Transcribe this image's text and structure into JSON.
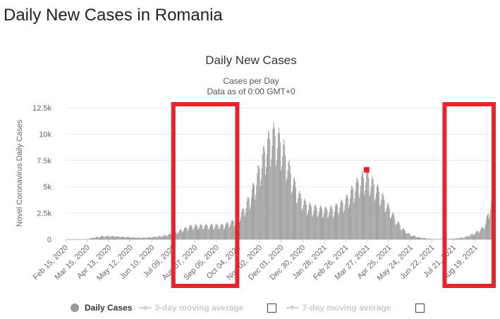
{
  "page": {
    "title": "Daily New Cases in Romania"
  },
  "colors": {
    "bars": "#9a9a9a",
    "highlight_box": "#e8232a",
    "peak_marker": "#e8232a",
    "grid": "#e6e6e6"
  },
  "chart_data": {
    "type": "bar",
    "title": "Daily New Cases",
    "subtitle_lines": [
      "Cases per Day",
      "Data as of 0:00 GMT+0"
    ],
    "xlabel": "",
    "ylabel": "Novel Coronavirus Daily Cases",
    "ylim": [
      0,
      12500
    ],
    "yticks": [
      "0",
      "2.5k",
      "5k",
      "7.5k",
      "10k",
      "12.5k"
    ],
    "ytick_values": [
      0,
      2500,
      5000,
      7500,
      10000,
      12500
    ],
    "grid": true,
    "xtick_labels": [
      "Feb 15, 2020",
      "Mar 15, 2020",
      "Apr 13, 2020",
      "May 12, 2020",
      "Jun 10, 2020",
      "Jul 09, 2020",
      "Aug 07, 2020",
      "Sep 05, 2020",
      "Oct 04, 2020",
      "Nov 02, 2020",
      "Dec 01, 2020",
      "Dec 30, 2020",
      "Jan 28, 2021",
      "Feb 26, 2021",
      "Mar 27, 2021",
      "Apr 25, 2021",
      "May 24, 2021",
      "Jun 22, 2021",
      "Jul 21, 2021",
      "Aug 19, 2021"
    ],
    "x_range": [
      "2020-02-15",
      "2021-09-13"
    ],
    "series": [
      {
        "name": "Daily Cases",
        "points": [
          [
            "2020-02-15",
            0
          ],
          [
            "2020-03-01",
            5
          ],
          [
            "2020-03-15",
            30
          ],
          [
            "2020-03-25",
            200
          ],
          [
            "2020-04-05",
            300
          ],
          [
            "2020-04-15",
            330
          ],
          [
            "2020-04-25",
            280
          ],
          [
            "2020-05-10",
            220
          ],
          [
            "2020-05-25",
            160
          ],
          [
            "2020-06-10",
            220
          ],
          [
            "2020-06-25",
            330
          ],
          [
            "2020-07-09",
            550
          ],
          [
            "2020-07-20",
            900
          ],
          [
            "2020-08-01",
            1250
          ],
          [
            "2020-08-15",
            1300
          ],
          [
            "2020-09-01",
            1300
          ],
          [
            "2020-09-15",
            1350
          ],
          [
            "2020-10-01",
            1800
          ],
          [
            "2020-10-10",
            2600
          ],
          [
            "2020-10-20",
            4000
          ],
          [
            "2020-10-28",
            5500
          ],
          [
            "2020-11-05",
            7500
          ],
          [
            "2020-11-12",
            9000
          ],
          [
            "2020-11-20",
            10000
          ],
          [
            "2020-11-28",
            9500
          ],
          [
            "2020-12-05",
            8500
          ],
          [
            "2020-12-15",
            6000
          ],
          [
            "2020-12-25",
            4200
          ],
          [
            "2021-01-05",
            3200
          ],
          [
            "2021-01-15",
            3000
          ],
          [
            "2021-01-28",
            2800
          ],
          [
            "2021-02-10",
            2900
          ],
          [
            "2021-02-26",
            3700
          ],
          [
            "2021-03-10",
            5000
          ],
          [
            "2021-03-20",
            5800
          ],
          [
            "2021-03-27",
            6000
          ],
          [
            "2021-04-05",
            5200
          ],
          [
            "2021-04-15",
            4200
          ],
          [
            "2021-04-25",
            3000
          ],
          [
            "2021-05-05",
            1800
          ],
          [
            "2021-05-15",
            900
          ],
          [
            "2021-05-24",
            450
          ],
          [
            "2021-06-05",
            180
          ],
          [
            "2021-06-22",
            50
          ],
          [
            "2021-07-05",
            40
          ],
          [
            "2021-07-21",
            70
          ],
          [
            "2021-08-05",
            200
          ],
          [
            "2021-08-19",
            600
          ],
          [
            "2021-08-30",
            1100
          ],
          [
            "2021-09-05",
            2200
          ],
          [
            "2021-09-13",
            4200
          ]
        ]
      }
    ],
    "peak_marker": {
      "date": "2021-03-26",
      "value": 6600
    },
    "legend": {
      "placement": "bottom",
      "items": [
        {
          "label": "Daily Cases",
          "active": true
        },
        {
          "label": "3-day moving average",
          "active": false
        },
        {
          "label": "7-day moving average",
          "active": false
        }
      ]
    },
    "highlight_regions": [
      {
        "from": "2020-07-09",
        "to": "2020-10-03"
      },
      {
        "from": "2021-07-09",
        "to": "2021-09-13"
      }
    ]
  }
}
